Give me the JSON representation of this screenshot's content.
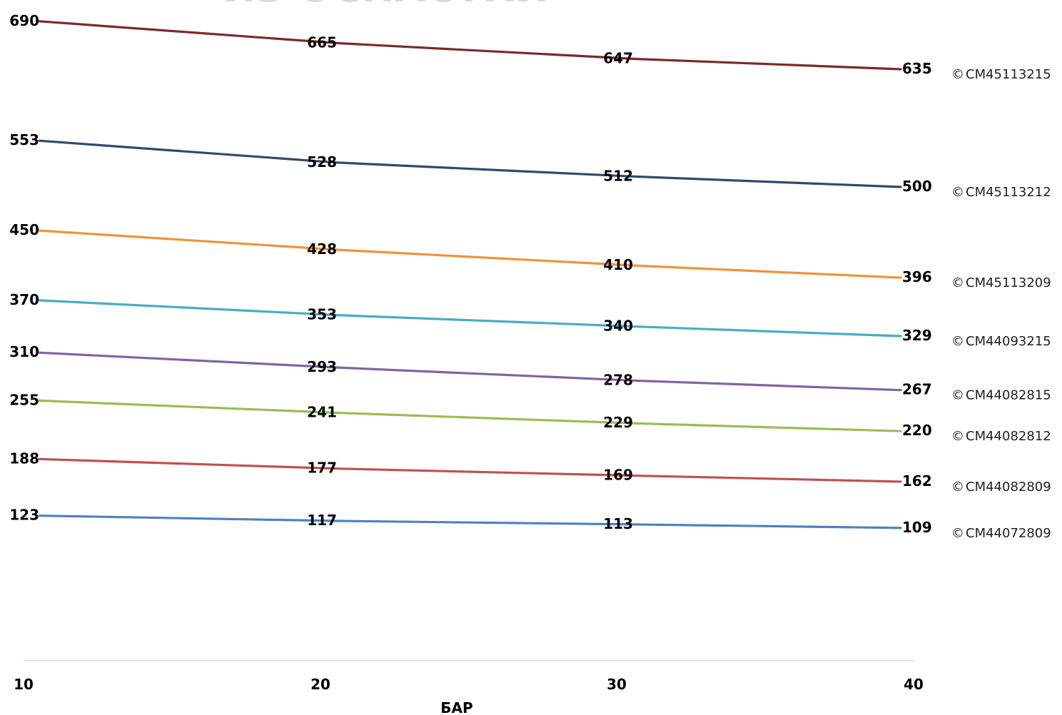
{
  "chart_data": {
    "type": "line",
    "title": "ИЗ ОСНАСТКИ",
    "xlabel": "БАР",
    "ylabel": "",
    "x": [
      10,
      20,
      30,
      40
    ],
    "xlim": [
      10,
      40
    ],
    "ylim": [
      0,
      700
    ],
    "grid": false,
    "legend_position": "right",
    "legend_marker": "©",
    "series": [
      {
        "name": "CM45113215",
        "color": "#7b2a2a",
        "values": [
          690,
          665,
          647,
          635
        ]
      },
      {
        "name": "CM45113212",
        "color": "#2e4a6b",
        "values": [
          553,
          528,
          512,
          500
        ]
      },
      {
        "name": "CM45113209",
        "color": "#f0923a",
        "values": [
          450,
          428,
          410,
          396
        ]
      },
      {
        "name": "CM44093215",
        "color": "#4aacc5",
        "values": [
          370,
          353,
          340,
          329
        ]
      },
      {
        "name": "CM44082815",
        "color": "#8064a2",
        "values": [
          310,
          293,
          278,
          267
        ]
      },
      {
        "name": "CM44082812",
        "color": "#9bbb59",
        "values": [
          255,
          241,
          229,
          220
        ]
      },
      {
        "name": "CM44082809",
        "color": "#c0504d",
        "values": [
          188,
          177,
          169,
          162
        ]
      },
      {
        "name": "CM44072809",
        "color": "#4f81bd",
        "values": [
          123,
          117,
          113,
          109
        ]
      }
    ]
  }
}
